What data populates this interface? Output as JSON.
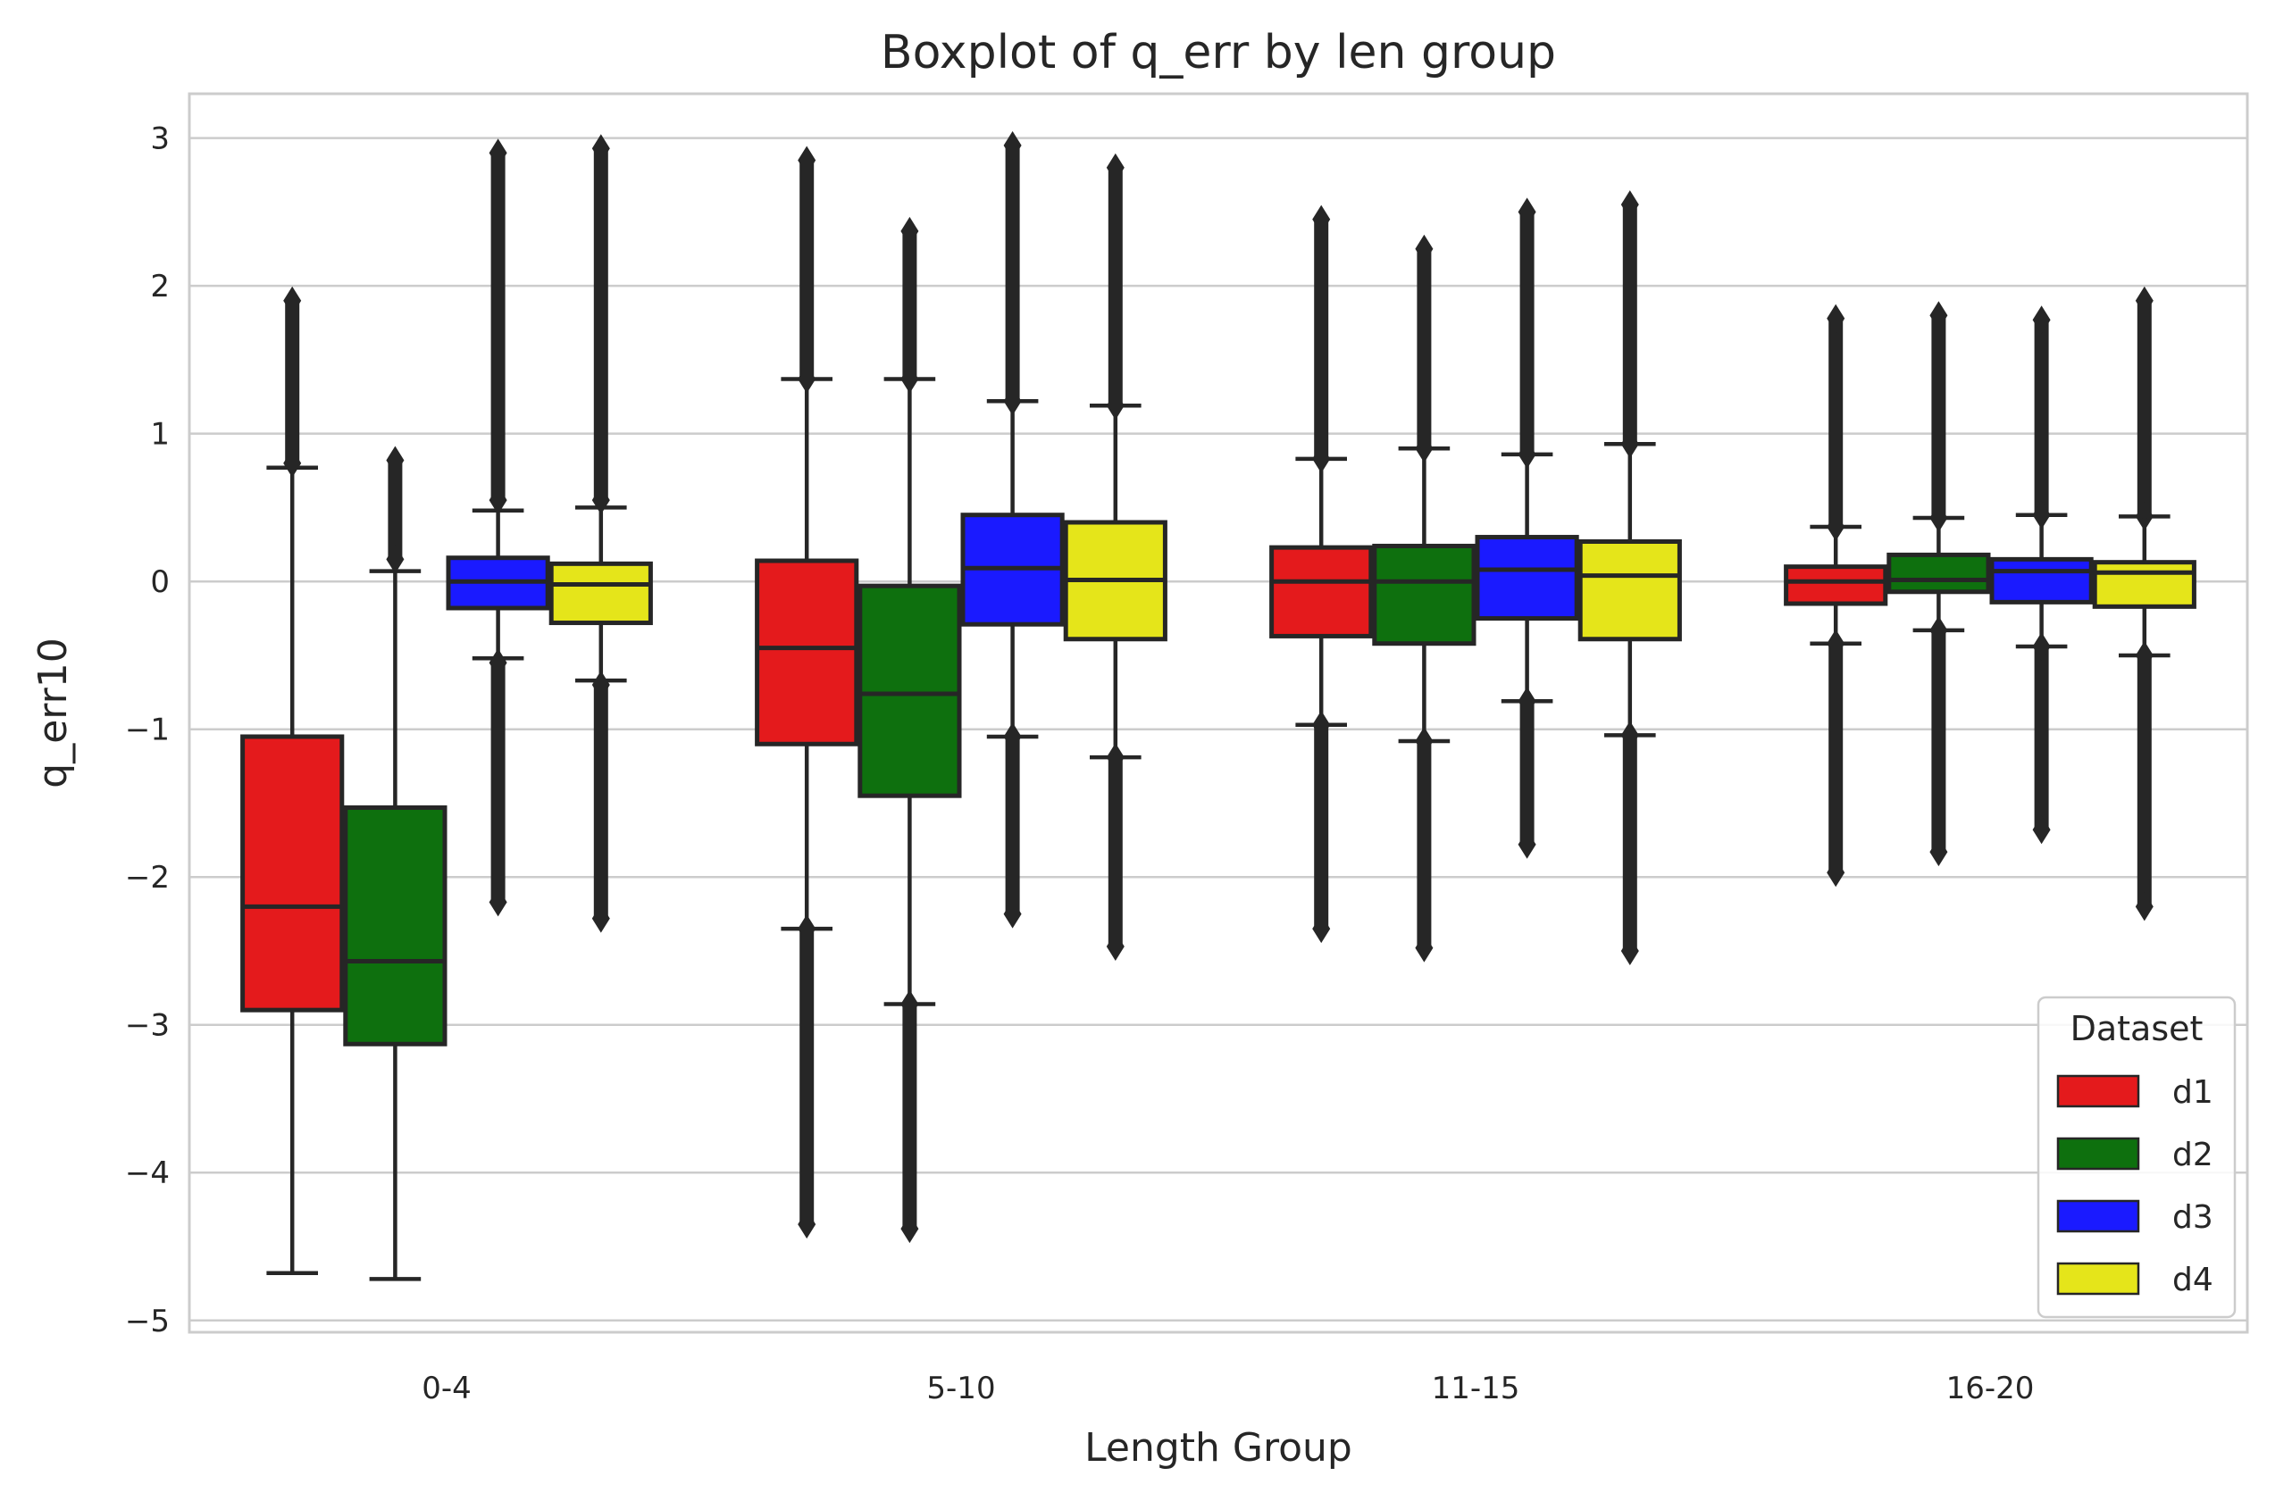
{
  "chart_data": {
    "type": "box",
    "title": "Boxplot of q_err by len group",
    "xlabel": "Length Group",
    "ylabel": "q_err10",
    "ylim": [
      -5.08,
      3.3
    ],
    "yticks": [
      3,
      2,
      1,
      0,
      -1,
      -2,
      -3,
      -4,
      -5
    ],
    "ytick_labels": [
      "3",
      "2",
      "1",
      "0",
      "−1",
      "−2",
      "−3",
      "−4",
      "−5"
    ],
    "grid": true,
    "categories": [
      "0-4",
      "5-10",
      "11-15",
      "16-20"
    ],
    "legend": {
      "title": "Dataset",
      "placement": "bottom-right"
    },
    "series": [
      {
        "name": "d1",
        "color": "#e41a1c",
        "boxes": [
          {
            "q1": -2.9,
            "median": -2.2,
            "q3": -1.05,
            "whisker_low": -4.68,
            "whisker_high": 0.77,
            "outliers_high": [
              0.8,
              1.9
            ],
            "outliers_low": []
          },
          {
            "q1": -1.1,
            "median": -0.45,
            "q3": 0.14,
            "whisker_low": -2.35,
            "whisker_high": 1.37,
            "outliers_high": [
              1.37,
              2.85
            ],
            "outliers_low": [
              -2.35,
              -4.35
            ]
          },
          {
            "q1": -0.37,
            "median": 0.0,
            "q3": 0.23,
            "whisker_low": -0.97,
            "whisker_high": 0.83,
            "outliers_high": [
              0.83,
              2.45
            ],
            "outliers_low": [
              -0.97,
              -2.35
            ]
          },
          {
            "q1": -0.15,
            "median": 0.0,
            "q3": 0.1,
            "whisker_low": -0.42,
            "whisker_high": 0.37,
            "outliers_high": [
              0.37,
              1.78
            ],
            "outliers_low": [
              -0.42,
              -1.97
            ]
          }
        ]
      },
      {
        "name": "d2",
        "color": "#0e700e",
        "boxes": [
          {
            "q1": -3.13,
            "median": -2.57,
            "q3": -1.53,
            "whisker_low": -4.72,
            "whisker_high": 0.07,
            "outliers_high": [
              0.15,
              0.82
            ],
            "outliers_low": []
          },
          {
            "q1": -1.45,
            "median": -0.76,
            "q3": -0.03,
            "whisker_low": -2.86,
            "whisker_high": 1.37,
            "outliers_high": [
              1.37,
              2.37
            ],
            "outliers_low": [
              -2.86,
              -4.38
            ]
          },
          {
            "q1": -0.42,
            "median": 0.0,
            "q3": 0.24,
            "whisker_low": -1.08,
            "whisker_high": 0.9,
            "outliers_high": [
              0.9,
              2.25
            ],
            "outliers_low": [
              -1.08,
              -2.48
            ]
          },
          {
            "q1": -0.07,
            "median": 0.01,
            "q3": 0.18,
            "whisker_low": -0.33,
            "whisker_high": 0.43,
            "outliers_high": [
              0.43,
              1.8
            ],
            "outliers_low": [
              -0.33,
              -1.83
            ]
          }
        ]
      },
      {
        "name": "d3",
        "color": "#1a1aff",
        "boxes": [
          {
            "q1": -0.18,
            "median": 0.0,
            "q3": 0.16,
            "whisker_low": -0.52,
            "whisker_high": 0.48,
            "outliers_high": [
              0.55,
              2.9
            ],
            "outliers_low": [
              -0.55,
              -2.17
            ]
          },
          {
            "q1": -0.29,
            "median": 0.09,
            "q3": 0.45,
            "whisker_low": -1.05,
            "whisker_high": 1.22,
            "outliers_high": [
              1.22,
              2.95
            ],
            "outliers_low": [
              -1.05,
              -2.25
            ]
          },
          {
            "q1": -0.25,
            "median": 0.08,
            "q3": 0.3,
            "whisker_low": -0.81,
            "whisker_high": 0.86,
            "outliers_high": [
              0.86,
              2.5
            ],
            "outliers_low": [
              -0.81,
              -1.78
            ]
          },
          {
            "q1": -0.14,
            "median": 0.07,
            "q3": 0.15,
            "whisker_low": -0.44,
            "whisker_high": 0.45,
            "outliers_high": [
              0.45,
              1.77
            ],
            "outliers_low": [
              -0.44,
              -1.68
            ]
          }
        ]
      },
      {
        "name": "d4",
        "color": "#e5e51a",
        "boxes": [
          {
            "q1": -0.28,
            "median": -0.02,
            "q3": 0.12,
            "whisker_low": -0.67,
            "whisker_high": 0.5,
            "outliers_high": [
              0.55,
              2.93
            ],
            "outliers_low": [
              -0.7,
              -2.28
            ]
          },
          {
            "q1": -0.39,
            "median": 0.01,
            "q3": 0.4,
            "whisker_low": -1.19,
            "whisker_high": 1.19,
            "outliers_high": [
              1.19,
              2.8
            ],
            "outliers_low": [
              -1.19,
              -2.47
            ]
          },
          {
            "q1": -0.39,
            "median": 0.04,
            "q3": 0.27,
            "whisker_low": -1.04,
            "whisker_high": 0.93,
            "outliers_high": [
              0.93,
              2.55
            ],
            "outliers_low": [
              -1.04,
              -2.5
            ]
          },
          {
            "q1": -0.17,
            "median": 0.06,
            "q3": 0.13,
            "whisker_low": -0.5,
            "whisker_high": 0.44,
            "outliers_high": [
              0.44,
              1.9
            ],
            "outliers_low": [
              -0.5,
              -2.2
            ]
          }
        ]
      }
    ]
  }
}
